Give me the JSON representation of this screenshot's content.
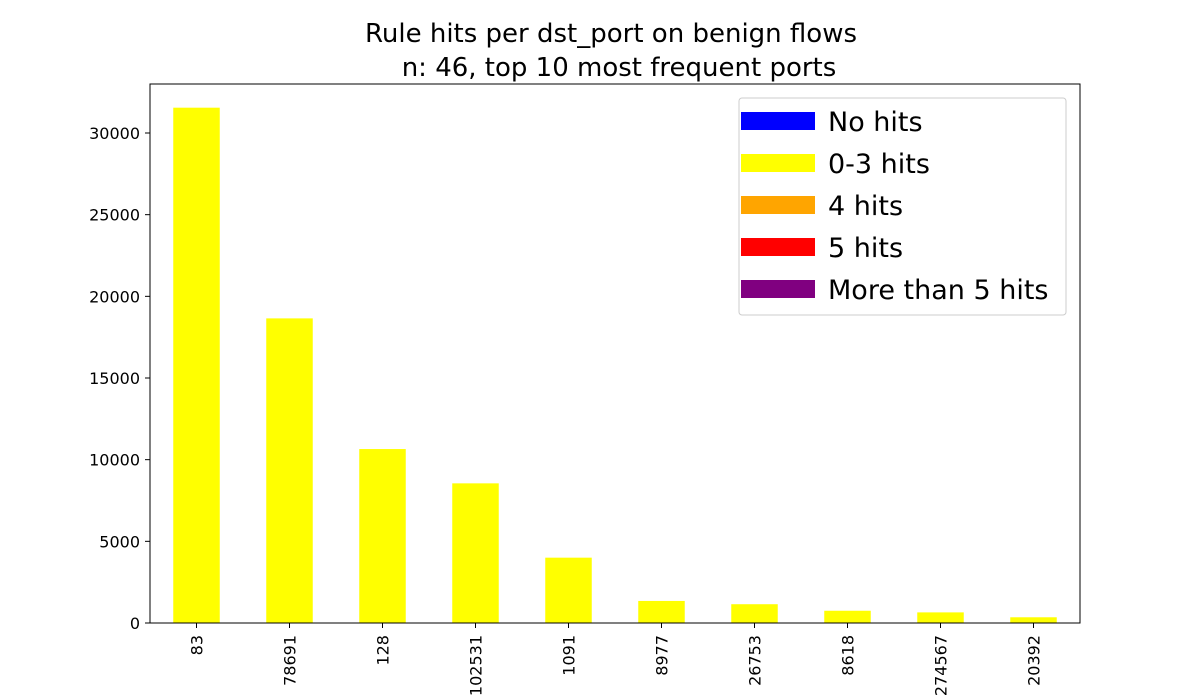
{
  "chart_data": {
    "type": "bar",
    "title_line1": "Rule hits per dst_port on benign flows",
    "title_line2": "n: 46, top 10 most frequent ports",
    "xlabel": "",
    "ylabel": "",
    "categories": [
      "83",
      "78691",
      "128",
      "102531",
      "1091",
      "8977",
      "26753",
      "8618",
      "274567",
      "20392"
    ],
    "values": [
      31550,
      18650,
      10650,
      8550,
      4000,
      1350,
      1150,
      750,
      650,
      350
    ],
    "bar_colors": [
      "#ffff00",
      "#ffff00",
      "#ffff00",
      "#ffff00",
      "#ffff00",
      "#ffff00",
      "#ffff00",
      "#ffff00",
      "#ffff00",
      "#ffff00"
    ],
    "ylim": [
      0,
      33000
    ],
    "yticks": [
      0,
      5000,
      10000,
      15000,
      20000,
      25000,
      30000
    ],
    "grid": false,
    "legend_position": "top-right",
    "legend": [
      {
        "label": "No hits",
        "color": "#0000ff"
      },
      {
        "label": "0-3 hits",
        "color": "#ffff00"
      },
      {
        "label": "4 hits",
        "color": "#ffa500"
      },
      {
        "label": "5 hits",
        "color": "#ff0000"
      },
      {
        "label": "More than 5 hits",
        "color": "#800080"
      }
    ]
  }
}
